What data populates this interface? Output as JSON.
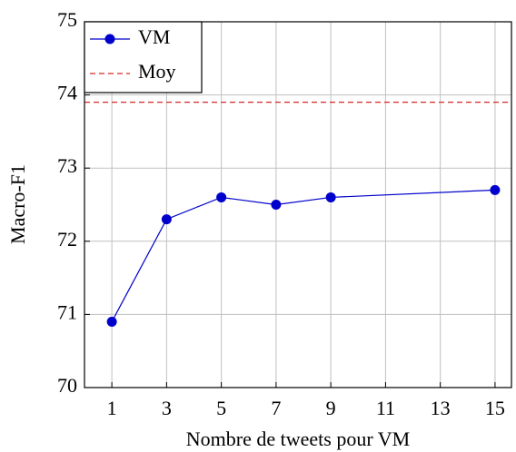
{
  "chart_data": {
    "type": "line",
    "xlabel": "Nombre de tweets pour VM",
    "ylabel": "Macro-F1",
    "x": [
      1,
      3,
      5,
      7,
      9,
      15
    ],
    "series": [
      {
        "name": "VM",
        "color": "#0000cc",
        "values": [
          70.9,
          72.3,
          72.6,
          72.5,
          72.6,
          72.7
        ]
      }
    ],
    "hlines": [
      {
        "name": "Moy",
        "value": 73.9,
        "color": "#d62728",
        "style": "dashed"
      }
    ],
    "xlim": [
      0,
      15.6
    ],
    "xticks": [
      1,
      3,
      5,
      7,
      9,
      11,
      13,
      15
    ],
    "ylim": [
      70,
      75
    ],
    "yticks": [
      70,
      71,
      72,
      73,
      74,
      75
    ],
    "grid": true,
    "legend": "upper left"
  }
}
